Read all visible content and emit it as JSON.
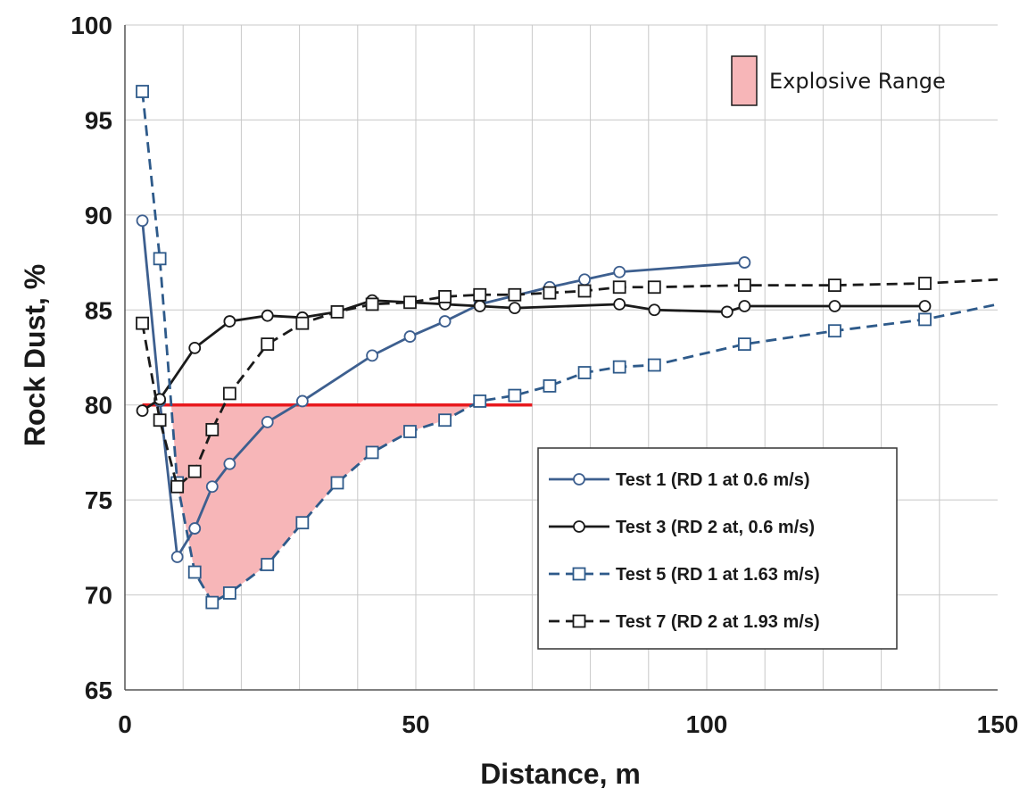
{
  "chart_data": {
    "type": "line",
    "title": "",
    "xlabel": "Distance, m",
    "ylabel": "Rock Dust, %",
    "xlim": [
      0,
      150
    ],
    "ylim": [
      65,
      100
    ],
    "xticks": [
      0,
      50,
      100,
      150
    ],
    "yticks": [
      65,
      70,
      75,
      80,
      85,
      90,
      95,
      100
    ],
    "x_minor_grid_step": 10,
    "y_grid_step": 5,
    "grid": true,
    "threshold": {
      "y": 80,
      "x_range": [
        3,
        70
      ],
      "color": "#e8191e"
    },
    "explosive_range": {
      "label": "Explosive Range",
      "color": "#f7b6b8"
    },
    "legend_position": "lower-center-right",
    "series": [
      {
        "name": "Test 1 (RD 1 at 0.6 m/s)",
        "color": "#3d5f8f",
        "dashed": false,
        "marker": "circle",
        "points": [
          [
            3,
            89.7
          ],
          [
            6,
            80.2
          ],
          [
            9,
            72
          ],
          [
            12,
            73.5
          ],
          [
            15,
            75.7
          ],
          [
            18,
            76.9
          ],
          [
            24.5,
            79.1
          ],
          [
            30.5,
            80.2
          ],
          [
            42.5,
            82.6
          ],
          [
            49,
            83.6
          ],
          [
            55,
            84.4
          ],
          [
            61,
            85.3
          ],
          [
            73,
            86.2
          ],
          [
            79,
            86.6
          ],
          [
            85,
            87
          ],
          [
            106.5,
            87.5
          ]
        ]
      },
      {
        "name": "Test 3 (RD 2 at, 0.6 m/s)",
        "color": "#1a1a1a",
        "dashed": false,
        "marker": "circle",
        "points": [
          [
            3,
            79.7
          ],
          [
            6,
            80.3
          ],
          [
            12,
            83
          ],
          [
            18,
            84.4
          ],
          [
            24.5,
            84.7
          ],
          [
            30.5,
            84.6
          ],
          [
            36.5,
            84.9
          ],
          [
            42.5,
            85.5
          ],
          [
            49,
            85.4
          ],
          [
            55,
            85.3
          ],
          [
            61,
            85.2
          ],
          [
            67,
            85.1
          ],
          [
            85,
            85.3
          ],
          [
            91,
            85
          ],
          [
            103.5,
            84.9
          ],
          [
            106.5,
            85.2
          ],
          [
            122,
            85.2
          ],
          [
            137.5,
            85.2
          ]
        ]
      },
      {
        "name": "Test 5 (RD 1 at 1.63 m/s)",
        "color": "#2e5a8a",
        "dashed": true,
        "marker": "square",
        "points": [
          [
            3,
            96.5
          ],
          [
            6,
            87.7
          ],
          [
            9,
            75.9
          ],
          [
            12,
            71.2
          ],
          [
            15,
            69.6
          ],
          [
            18,
            70.1
          ],
          [
            24.5,
            71.6
          ],
          [
            30.5,
            73.8
          ],
          [
            36.5,
            75.9
          ],
          [
            42.5,
            77.5
          ],
          [
            49,
            78.6
          ],
          [
            55,
            79.2
          ],
          [
            61,
            80.2
          ],
          [
            67,
            80.5
          ],
          [
            73,
            81
          ],
          [
            79,
            81.7
          ],
          [
            85,
            82
          ],
          [
            91,
            82.1
          ],
          [
            106.5,
            83.2
          ],
          [
            122,
            83.9
          ],
          [
            137.5,
            84.5
          ],
          [
            150,
            85.3
          ]
        ]
      },
      {
        "name": "Test 7 (RD 2 at 1.93 m/s)",
        "color": "#1a1a1a",
        "dashed": true,
        "marker": "square",
        "points": [
          [
            3,
            84.3
          ],
          [
            6,
            79.2
          ],
          [
            9,
            75.7
          ],
          [
            12,
            76.5
          ],
          [
            15,
            78.7
          ],
          [
            18,
            80.6
          ],
          [
            24.5,
            83.2
          ],
          [
            30.5,
            84.3
          ],
          [
            36.5,
            84.9
          ],
          [
            42.5,
            85.3
          ],
          [
            49,
            85.4
          ],
          [
            55,
            85.7
          ],
          [
            61,
            85.8
          ],
          [
            67,
            85.8
          ],
          [
            73,
            85.9
          ],
          [
            79,
            86
          ],
          [
            85,
            86.2
          ],
          [
            91,
            86.2
          ],
          [
            106.5,
            86.3
          ],
          [
            122,
            86.3
          ],
          [
            137.5,
            86.4
          ],
          [
            150,
            86.6
          ]
        ]
      }
    ]
  }
}
